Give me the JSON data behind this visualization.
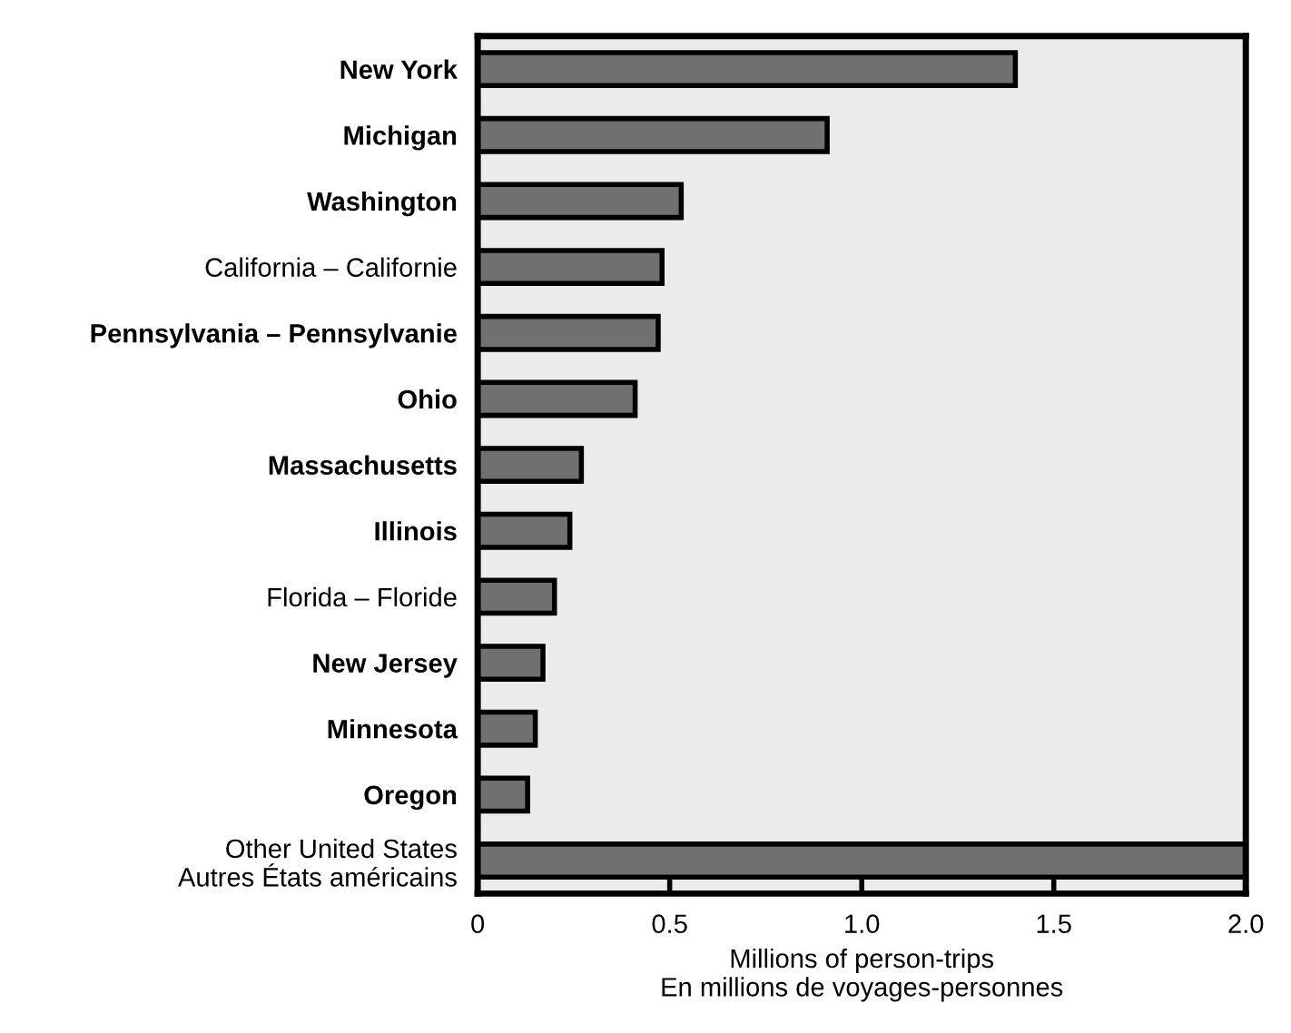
{
  "chart_data": {
    "type": "bar",
    "orientation": "horizontal",
    "categories": [
      "New York",
      "Michigan",
      "Washington",
      "California – Californie",
      "Pennsylvania – Pennsylvanie",
      "Ohio",
      "Massachusetts",
      "Illinois",
      "Florida – Floride",
      "New Jersey",
      "Minnesota",
      "Oregon",
      "Other United States\nAutres États américains"
    ],
    "values": [
      1.4,
      0.91,
      0.53,
      0.48,
      0.47,
      0.41,
      0.27,
      0.24,
      0.2,
      0.17,
      0.15,
      0.13,
      2.0
    ],
    "color": "#707070",
    "xlabel": "Millions of person-trips\nEn millions de voyages-personnes",
    "xlim": [
      0,
      2.0
    ],
    "xticks": [
      0,
      0.5,
      {
        "value": 1,
        "label": "1.0"
      },
      1.5,
      {
        "value": 2,
        "label": "2.0"
      }
    ],
    "grid": false
  }
}
